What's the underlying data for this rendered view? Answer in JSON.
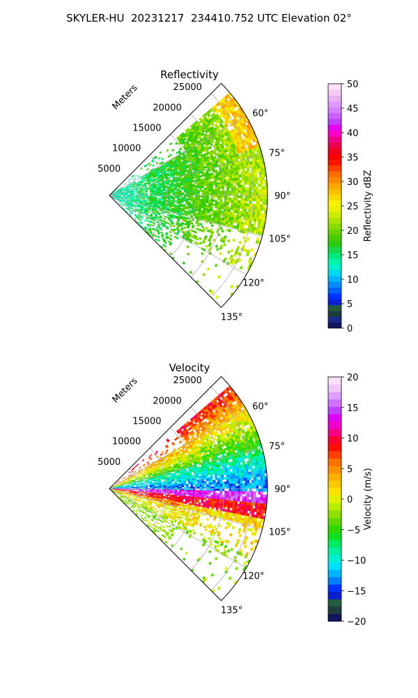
{
  "title": "SKYLER-HU  20231217  234410.752 UTC Elevation 02°",
  "chart_data": [
    {
      "type": "polar-sector-heatmap",
      "title": "Reflectivity",
      "range_axis_label": "Meters",
      "range_ticks": [
        5000,
        10000,
        15000,
        20000,
        25000
      ],
      "range_tick_labels": [
        "5000",
        "10000",
        "15000",
        "20000",
        "25000"
      ],
      "range_max": 27500,
      "azimuth_range_deg": [
        45,
        135
      ],
      "azimuth_ticks": [
        60,
        75,
        90,
        105,
        120,
        135
      ],
      "azimuth_tick_labels": [
        "60°",
        "75°",
        "90°",
        "105°",
        "120°",
        "135°"
      ],
      "grid": true,
      "colorbar": {
        "label": "Reflectivity dBZ",
        "min": 0,
        "max": 50,
        "ticks": [
          0,
          5,
          10,
          15,
          20,
          25,
          30,
          35,
          40,
          45,
          50
        ],
        "tick_labels": [
          "0",
          "5",
          "10",
          "15",
          "20",
          "25",
          "30",
          "35",
          "40",
          "45",
          "50"
        ],
        "colors": [
          "#10145c",
          "#1a2a8a",
          "#1f3c3c",
          "#245a40",
          "#0a1fd0",
          "#0033ff",
          "#0060ff",
          "#008cff",
          "#00b4ff",
          "#00d8f0",
          "#00f0d0",
          "#00f5a8",
          "#00e87a",
          "#14d84a",
          "#2acb10",
          "#46cc00",
          "#66d200",
          "#88dc00",
          "#aae400",
          "#ccec00",
          "#e8f000",
          "#f8f000",
          "#fbd800",
          "#fcc000",
          "#fca400",
          "#fc8800",
          "#fc6c00",
          "#fc4000",
          "#fc1800",
          "#fc0000",
          "#f0001a",
          "#ee0050",
          "#f0008a",
          "#f800c8",
          "#e800f4",
          "#c040ff",
          "#c860ff",
          "#d480ff",
          "#e098ff",
          "#ecb0f4",
          "#f4c8f4",
          "#fce0fc"
        ]
      }
    },
    {
      "type": "polar-sector-heatmap",
      "title": "Velocity",
      "range_axis_label": "Meters",
      "range_ticks": [
        5000,
        10000,
        15000,
        20000,
        25000
      ],
      "range_tick_labels": [
        "5000",
        "10000",
        "15000",
        "20000",
        "25000"
      ],
      "range_max": 27500,
      "azimuth_range_deg": [
        45,
        135
      ],
      "azimuth_ticks": [
        60,
        75,
        90,
        105,
        120,
        135
      ],
      "azimuth_tick_labels": [
        "60°",
        "75°",
        "90°",
        "105°",
        "120°",
        "135°"
      ],
      "grid": true,
      "colorbar": {
        "label": "Velocity (m/s)",
        "min": -20,
        "max": 20,
        "ticks": [
          -20,
          -15,
          -10,
          -5,
          0,
          5,
          10,
          15,
          20
        ],
        "tick_labels": [
          "−20",
          "−15",
          "−10",
          "−5",
          "0",
          "5",
          "10",
          "15",
          "20"
        ],
        "colors": [
          "#10145c",
          "#1f3c3c",
          "#245a40",
          "#0a1fd0",
          "#0033ff",
          "#0080ff",
          "#00b4ff",
          "#00e0ff",
          "#00f0d0",
          "#00f0a0",
          "#00ec60",
          "#10e020",
          "#30d800",
          "#60d800",
          "#90e000",
          "#b8ec00",
          "#e0f000",
          "#fce000",
          "#fcc800",
          "#fcb000",
          "#fc9000",
          "#fc7000",
          "#fc4000",
          "#fc1000",
          "#fc0030",
          "#f40080",
          "#f000c8",
          "#e000f8",
          "#c040ff",
          "#d070ff",
          "#e0a0ff",
          "#f0c8f8",
          "#fce0fc"
        ]
      }
    }
  ]
}
